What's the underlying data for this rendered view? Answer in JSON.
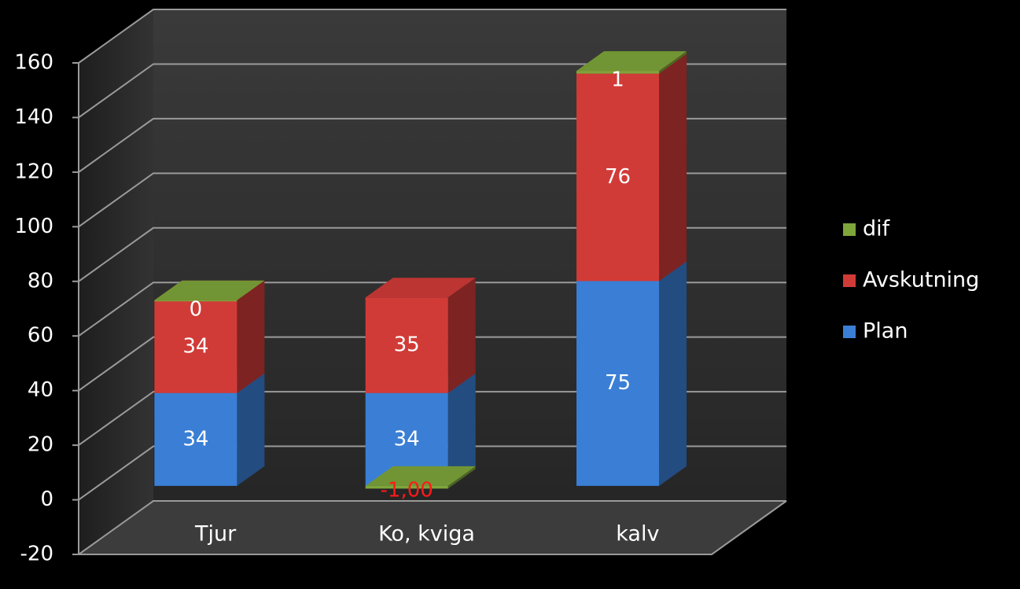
{
  "chart_data": {
    "type": "bar3d_stacked",
    "categories": [
      "Tjur",
      "Ko, kviga",
      "kalv"
    ],
    "series": [
      {
        "name": "Plan",
        "color": "#3a7fd5",
        "values": [
          34,
          34,
          75
        ]
      },
      {
        "name": "Avskutning",
        "color": "#d13b37",
        "values": [
          34,
          35,
          76
        ]
      },
      {
        "name": "dif",
        "color": "#7ea53a",
        "values": [
          0,
          -1,
          1
        ],
        "value_labels": [
          "0",
          "-1,00",
          "1"
        ]
      }
    ],
    "ylim": [
      -20,
      160
    ],
    "yticks": [
      -20,
      0,
      20,
      40,
      60,
      80,
      100,
      120,
      140,
      160
    ],
    "grid": true,
    "legend": "right"
  }
}
